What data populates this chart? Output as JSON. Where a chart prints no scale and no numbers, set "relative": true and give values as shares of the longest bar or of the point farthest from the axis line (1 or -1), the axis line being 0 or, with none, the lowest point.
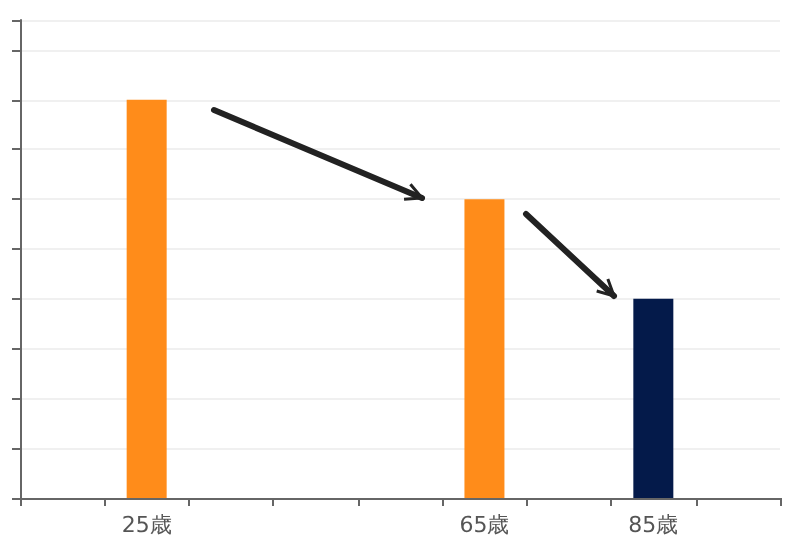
{
  "chart_data": {
    "type": "bar",
    "relative": true,
    "categories": [
      null,
      "25歳",
      null,
      null,
      null,
      "65歳",
      null,
      "85歳",
      null
    ],
    "values": [
      null,
      1,
      null,
      null,
      null,
      0.75,
      null,
      0.5,
      null
    ],
    "colors": [
      null,
      "#ff8c1a",
      null,
      null,
      null,
      "#ff8c1a",
      null,
      "#041a4a",
      null
    ],
    "grid": "y"
  }
}
